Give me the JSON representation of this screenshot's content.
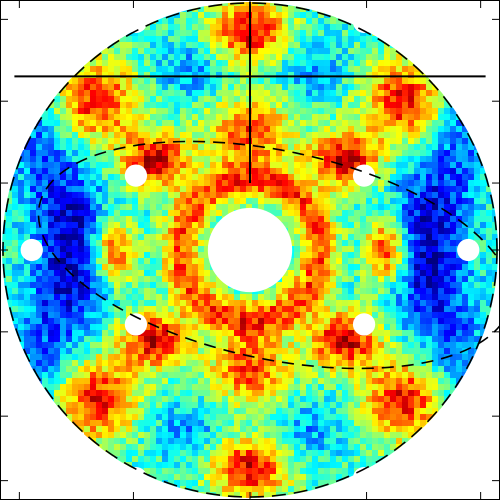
{
  "chart_data": {
    "type": "heatmap",
    "title": "",
    "xlabel": "",
    "ylabel": "",
    "xlim": [
      -1,
      1
    ],
    "ylim": [
      -1,
      1
    ],
    "grid": "off",
    "colormap": "jet",
    "color_range": [
      0,
      1
    ],
    "symmetry": "4-fold",
    "mask": {
      "outer_radius": 1.0,
      "center_hole_radius": 0.17,
      "small_holes": [
        {
          "x": -0.46,
          "y": 0.92,
          "r": 0.045
        },
        {
          "x": 0.46,
          "y": 0.92,
          "r": 0.045
        },
        {
          "x": -0.46,
          "y": 0.3,
          "r": 0.045
        },
        {
          "x": 0.46,
          "y": 0.3,
          "r": 0.045
        },
        {
          "x": -0.88,
          "y": 0.0,
          "r": 0.045
        },
        {
          "x": 0.88,
          "y": 0.0,
          "r": 0.045
        },
        {
          "x": -0.46,
          "y": -0.3,
          "r": 0.045
        },
        {
          "x": 0.46,
          "y": -0.3,
          "r": 0.045
        },
        {
          "x": -0.46,
          "y": -0.92,
          "r": 0.045
        },
        {
          "x": 0.46,
          "y": -0.92,
          "r": 0.045
        }
      ]
    },
    "overlays": {
      "outer_dashed_circle_radius": 1.0,
      "vertical_line": {
        "x": 0.0,
        "y_from": 1.0,
        "y_to": 0.27
      },
      "horizontal_line": {
        "y": 0.7,
        "x_from": -0.95,
        "x_to": 0.95
      },
      "dashed_ellipse": {
        "cx": 0.1,
        "cy": -0.02,
        "rx": 0.97,
        "ry": 0.42,
        "angle_deg": -12
      }
    },
    "x_ticks": [
      -0.93,
      -0.47,
      0.0,
      0.47,
      0.93
    ],
    "y_ticks": [
      0.93,
      0.6,
      0.27,
      0.0,
      -0.33,
      -0.67,
      -0.93
    ],
    "tick_labels": []
  }
}
